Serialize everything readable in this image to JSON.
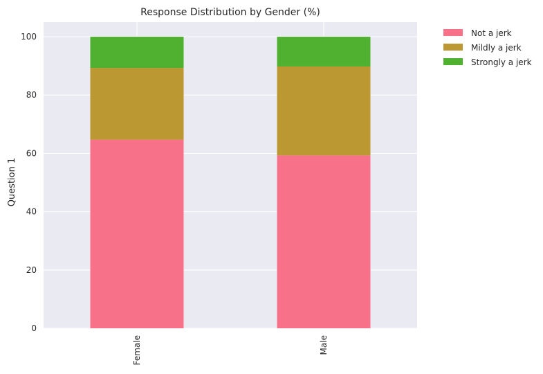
{
  "chart_data": {
    "type": "bar",
    "stacked": true,
    "title": "Response Distribution by Gender (%)",
    "xlabel": "",
    "ylabel": "Question 1",
    "categories": [
      "Female",
      "Male"
    ],
    "series": [
      {
        "name": "Not a jerk",
        "color": "#f77189",
        "values": [
          64.7,
          59.3
        ]
      },
      {
        "name": "Mildly a jerk",
        "color": "#bb9832",
        "values": [
          24.6,
          30.5
        ]
      },
      {
        "name": "Strongly a jerk",
        "color": "#50b131",
        "values": [
          10.7,
          10.2
        ]
      }
    ],
    "ylim": [
      0,
      105
    ],
    "yticks": [
      0,
      20,
      40,
      60,
      80,
      100
    ],
    "grid": true,
    "legend_position": "outside-top-right",
    "background": "#eaeaf2",
    "gridline_color": "#ffffff"
  }
}
